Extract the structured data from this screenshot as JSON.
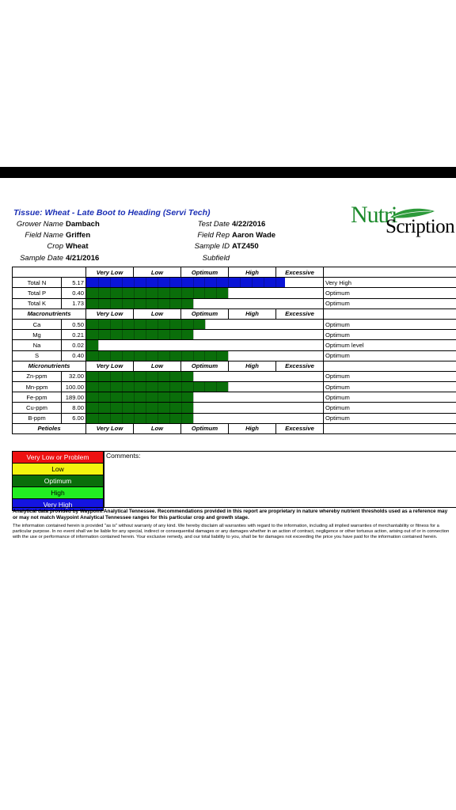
{
  "report": {
    "title": "Tissue: Wheat - Late Boot to Heading (Servi Tech)",
    "logo": {
      "part1": "Nutri",
      "part2": "Scription"
    },
    "left_fields": [
      {
        "label": "Grower Name",
        "value": "Dambach"
      },
      {
        "label": "Field Name",
        "value": "Griffen"
      },
      {
        "label": "Crop",
        "value": "Wheat"
      },
      {
        "label": "Sample Date",
        "value": "4/21/2016"
      }
    ],
    "right_fields": [
      {
        "label": "Test Date",
        "value": "4/22/2016"
      },
      {
        "label": "Field Rep",
        "value": "Aaron Wade"
      },
      {
        "label": "Sample ID",
        "value": "ATZ450"
      },
      {
        "label": "Subfield",
        "value": ""
      }
    ],
    "levels": [
      "Very Low",
      "Low",
      "Optimum",
      "High",
      "Excessive"
    ],
    "sections": [
      {
        "name": "",
        "rows": [
          {
            "nutrient": "Total N",
            "value": "5.17",
            "level": 0.84,
            "color": "#0a14d6",
            "remark": "Very High"
          },
          {
            "nutrient": "Total P",
            "value": "0.40",
            "level": 0.6,
            "color": "#0a6e0a",
            "remark": "Optimum"
          },
          {
            "nutrient": "Total K",
            "value": "1.73",
            "level": 0.45,
            "color": "#0a6e0a",
            "remark": "Optimum"
          }
        ]
      },
      {
        "name": "Macronutrients",
        "rows": [
          {
            "nutrient": "Ca",
            "value": "0.50",
            "level": 0.5,
            "color": "#0a6e0a",
            "remark": "Optimum"
          },
          {
            "nutrient": "Mg",
            "value": "0.21",
            "level": 0.45,
            "color": "#0a6e0a",
            "remark": "Optimum"
          },
          {
            "nutrient": "Na",
            "value": "0.02",
            "level": 0.05,
            "color": "#0a6e0a",
            "remark": "Optimum level"
          },
          {
            "nutrient": "S",
            "value": "0.40",
            "level": 0.6,
            "color": "#0a6e0a",
            "remark": "Optimum"
          }
        ]
      },
      {
        "name": "Micronutrients",
        "rows": [
          {
            "nutrient": "Zn-ppm",
            "value": "32.00",
            "level": 0.45,
            "color": "#0a6e0a",
            "remark": "Optimum"
          },
          {
            "nutrient": "Mn-ppm",
            "value": "100.00",
            "level": 0.6,
            "color": "#0a6e0a",
            "remark": "Optimum"
          },
          {
            "nutrient": "Fe-ppm",
            "value": "189.00",
            "level": 0.45,
            "color": "#0a6e0a",
            "remark": "Optimum"
          },
          {
            "nutrient": "Cu-ppm",
            "value": "8.00",
            "level": 0.45,
            "color": "#0a6e0a",
            "remark": "Optimum"
          },
          {
            "nutrient": "B-ppm",
            "value": "6.00",
            "level": 0.45,
            "color": "#0a6e0a",
            "remark": "Optimum"
          }
        ]
      },
      {
        "name": "Petioles",
        "rows": []
      }
    ],
    "legend": [
      {
        "label": "Very Low or Problem",
        "bg": "#ee1111",
        "fg": "#ffffff"
      },
      {
        "label": "Low",
        "bg": "#f4f40e",
        "fg": "#000000"
      },
      {
        "label": "Optimum",
        "bg": "#0a6e0a",
        "fg": "#ffffff"
      },
      {
        "label": "High",
        "bg": "#22ee22",
        "fg": "#000000"
      },
      {
        "label": "Very High",
        "bg": "#1414e0",
        "fg": "#ffffff"
      }
    ],
    "comments_label": "Comments:",
    "analytic_note": "Analytical data provided by Waypoint Analytical Tennessee. Recommendations provided in this report are proprietary in nature whereby nutrient thresholds used as a reference may or may not match Waypoint Analytical Tennessee ranges for this particular crop and growth stage.",
    "legal_note": "The information contained herein is provided \"as is\" without warranty of any kind. We hereby disclaim all warranties with regard to the information, including all implied warranties of merchantability or fitness for a particular purpose. In no event shall we be liable for any special, indirect or consequential damages or any damages whether in an action of contract, negligence or other tortuous action, arising out of or in connection with the use or performance of information contained herein. Your exclusive remedy, and our total liability to you, shall be for damages not exceeding the price you have paid for the information contained herein."
  }
}
